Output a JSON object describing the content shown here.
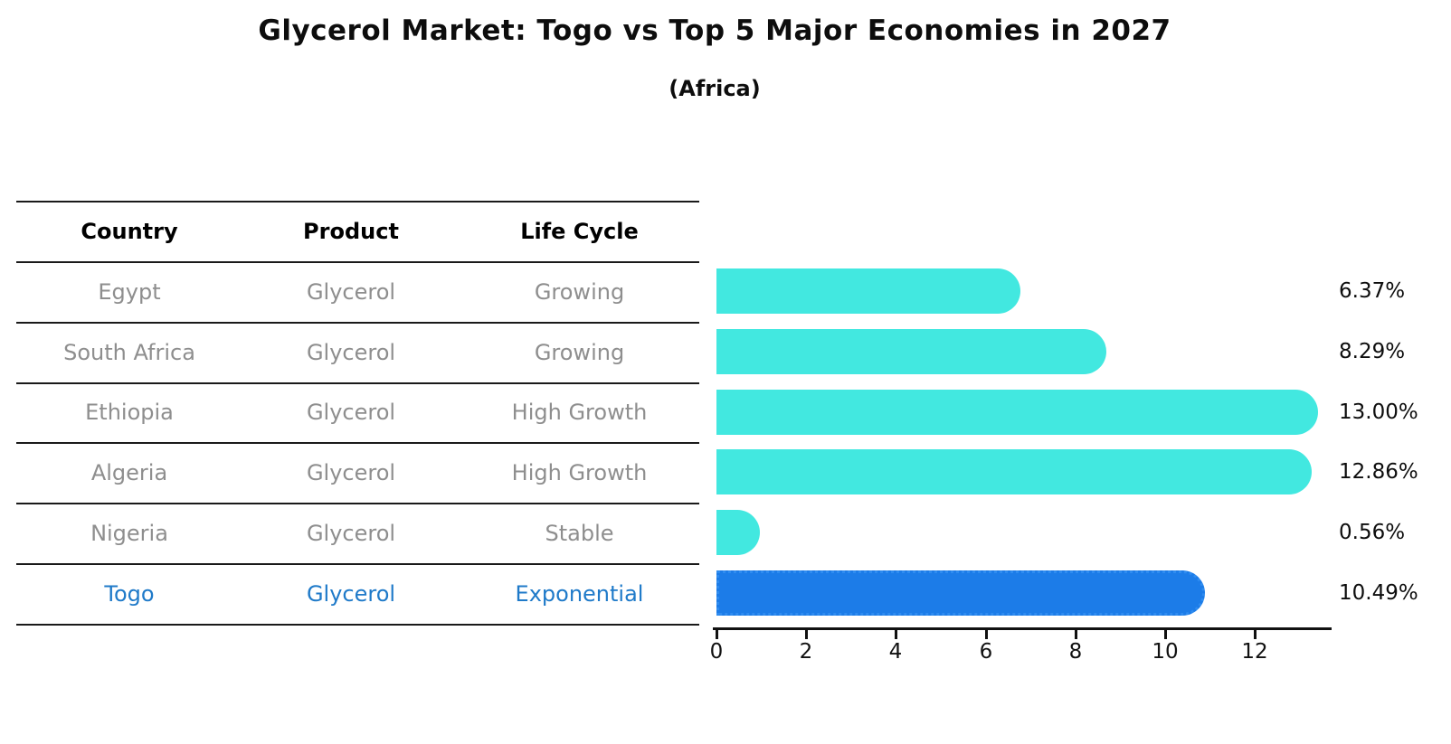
{
  "title": "Glycerol Market: Togo vs Top 5 Major Economies in 2027",
  "subtitle": "(Africa)",
  "table": {
    "headers": [
      "Country",
      "Product",
      "Life Cycle"
    ],
    "rows": [
      {
        "country": "Egypt",
        "product": "Glycerol",
        "life_cycle": "Growing"
      },
      {
        "country": "South Africa",
        "product": "Glycerol",
        "life_cycle": "Growing"
      },
      {
        "country": "Ethiopia",
        "product": "Glycerol",
        "life_cycle": "High Growth"
      },
      {
        "country": "Algeria",
        "product": "Glycerol",
        "life_cycle": "High Growth"
      },
      {
        "country": "Nigeria",
        "product": "Glycerol",
        "life_cycle": "Stable"
      },
      {
        "country": "Togo",
        "product": "Glycerol",
        "life_cycle": "Exponential"
      }
    ]
  },
  "chart_data": {
    "type": "bar",
    "orientation": "horizontal",
    "title": "Glycerol Market: Togo vs Top 5 Major Economies in 2027 (Africa)",
    "categories": [
      "Egypt",
      "South Africa",
      "Ethiopia",
      "Algeria",
      "Nigeria",
      "Togo"
    ],
    "values": [
      6.37,
      8.29,
      13.0,
      12.86,
      0.56,
      10.49
    ],
    "value_labels": [
      "6.37%",
      "8.29%",
      "13.00%",
      "12.86%",
      "0.56%",
      "10.49%"
    ],
    "x_ticks": [
      "0",
      "2",
      "4",
      "6",
      "8",
      "10",
      "12"
    ],
    "xlim": [
      0,
      13.65
    ],
    "xlabel": "",
    "ylabel": "",
    "grid": false,
    "legend": null,
    "bar_color": "#42e8e0",
    "highlight_color": "#1c7ce8",
    "highlight_border_color": "#2f8cf0",
    "highlight_index": 5,
    "highlight_category": "Togo"
  },
  "colors": {
    "background": "#ffffff",
    "header_text": "#000000",
    "row_text": "#8e8e8e",
    "highlight_text": "#1f7ac9",
    "axis": "#111111"
  }
}
